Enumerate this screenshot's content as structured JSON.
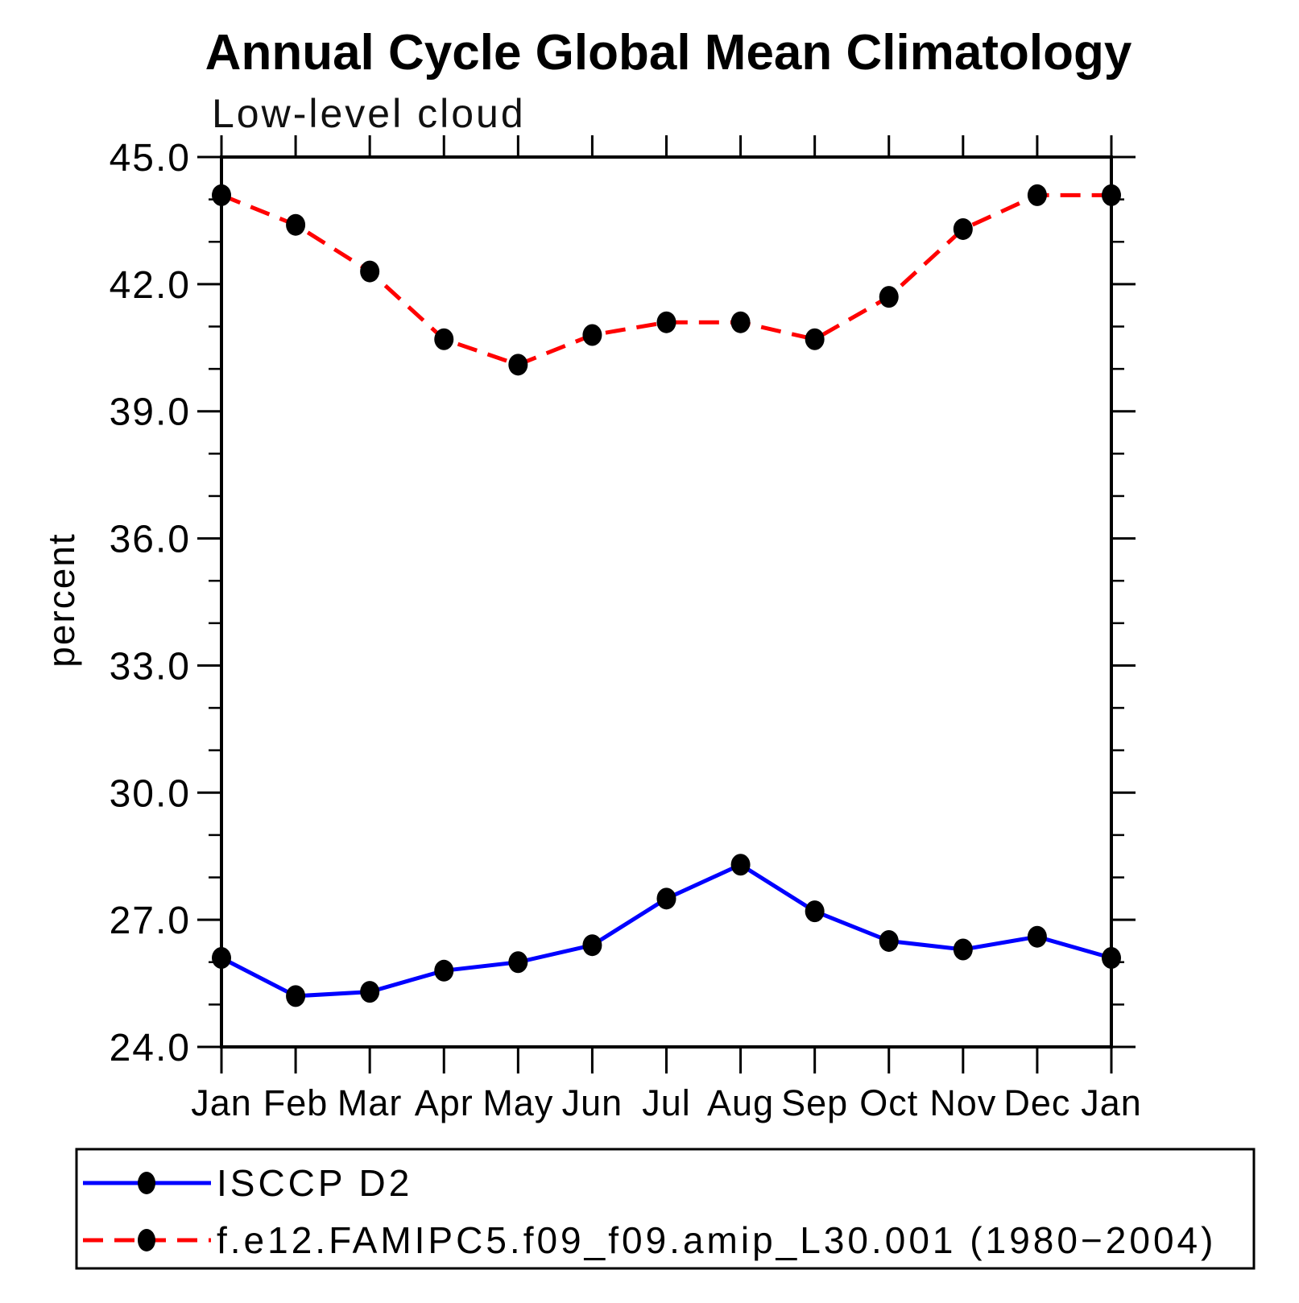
{
  "chart_data": {
    "type": "line",
    "title": "Annual Cycle Global Mean Climatology",
    "subtitle": "Low-level cloud",
    "ylabel": "percent",
    "x_categories": [
      "Jan",
      "Feb",
      "Mar",
      "Apr",
      "May",
      "Jun",
      "Jul",
      "Aug",
      "Sep",
      "Oct",
      "Nov",
      "Dec",
      "Jan"
    ],
    "ylim": [
      24.0,
      45.0
    ],
    "y_major_ticks": [
      24.0,
      27.0,
      30.0,
      33.0,
      36.0,
      39.0,
      42.0,
      45.0
    ],
    "y_major_tick_labels": [
      "24.0",
      "27.0",
      "30.0",
      "33.0",
      "36.0",
      "39.0",
      "42.0",
      "45.0"
    ],
    "y_minor_step": 1.0,
    "grid": false,
    "legend_position": "bottom-left-box",
    "marker_color": "#000000",
    "axis_color": "#000000",
    "series": [
      {
        "name": "ISCCP D2",
        "color": "#0000ff",
        "line_style": "solid",
        "marker": "circle",
        "values": [
          26.1,
          25.2,
          25.3,
          25.8,
          26.0,
          26.4,
          27.5,
          28.3,
          27.2,
          26.5,
          26.3,
          26.6,
          26.1
        ]
      },
      {
        "name": "f.e12.FAMIPC5.f09_f09.amip_L30.001 (1980−2004)",
        "color": "#ff0000",
        "line_style": "dashed",
        "marker": "circle",
        "values": [
          44.1,
          43.4,
          42.3,
          40.7,
          40.1,
          40.8,
          41.1,
          41.1,
          40.7,
          41.7,
          43.3,
          44.1,
          44.1
        ]
      }
    ]
  }
}
